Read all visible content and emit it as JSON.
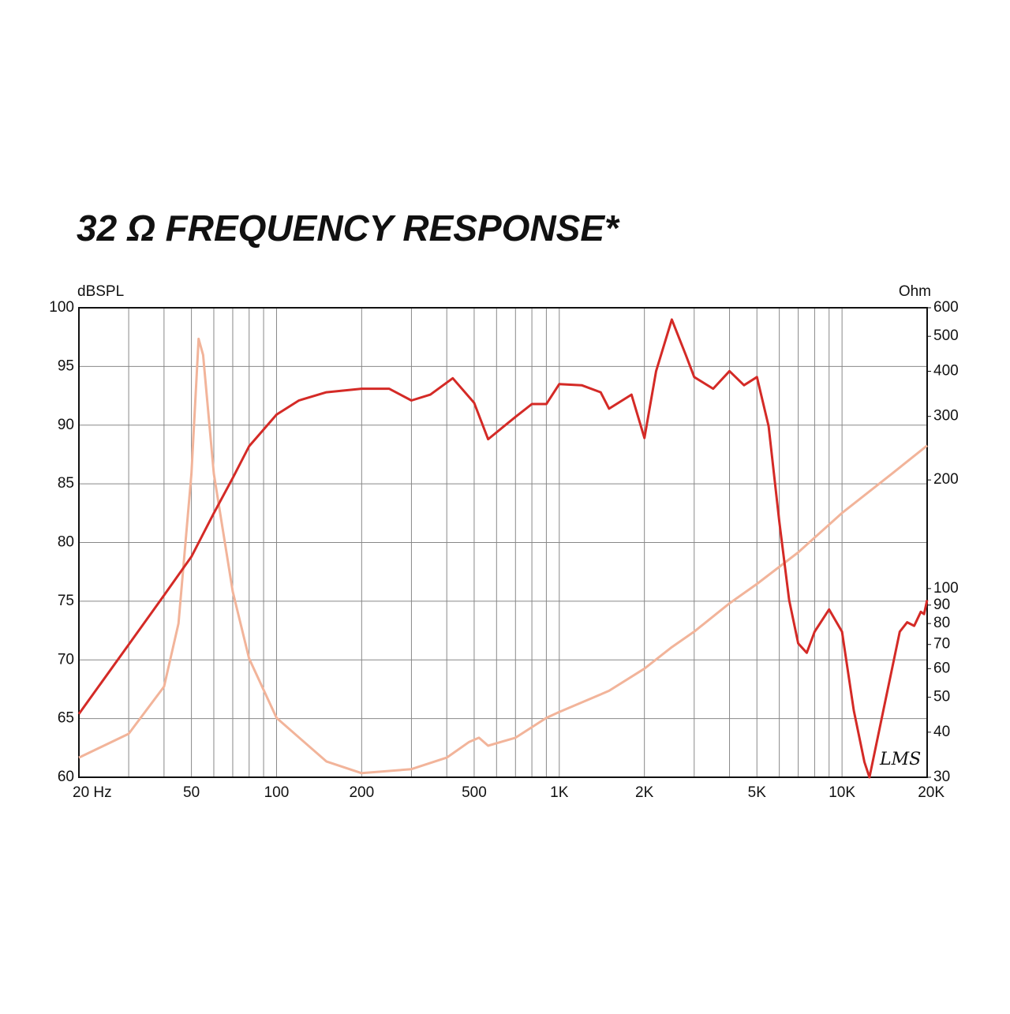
{
  "chart_data": {
    "type": "line",
    "title": "32 Ω FREQUENCY RESPONSE*",
    "ylabel": "dBSPL",
    "y2label": "Ohm",
    "annotation": "LMS",
    "xscale": "log",
    "y2scale": "log",
    "grid": true,
    "xlim": [
      20,
      20000
    ],
    "xticks": [
      {
        "value": 20,
        "label": "20  Hz"
      },
      50,
      100,
      200,
      500,
      {
        "value": 1000,
        "label": "1K"
      },
      {
        "value": 2000,
        "label": "2K"
      },
      {
        "value": 5000,
        "label": "5K"
      },
      {
        "value": 10000,
        "label": "10K"
      },
      {
        "value": 20000,
        "label": "20K"
      }
    ],
    "ylim": [
      60,
      100
    ],
    "yticks": [
      60,
      65,
      70,
      75,
      80,
      85,
      90,
      95,
      100
    ],
    "y2lim": [
      30,
      600
    ],
    "y2ticks": [
      30,
      40,
      50,
      60,
      70,
      80,
      90,
      100,
      200,
      300,
      400,
      500,
      600
    ],
    "series": [
      {
        "color": "#d42a26",
        "x": [
          20,
          30,
          40,
          50,
          60,
          70,
          80,
          100,
          120,
          150,
          200,
          250,
          300,
          350,
          420,
          500,
          560,
          700,
          800,
          900,
          1000,
          1200,
          1400,
          1500,
          1800,
          2000,
          2200,
          2500,
          2800,
          3000,
          3500,
          4000,
          4500,
          5000,
          5500,
          6000,
          6500,
          7000,
          7500,
          8000,
          9000,
          10000,
          11000,
          12000,
          12500,
          14000,
          16000,
          17000,
          18000,
          19000,
          19500,
          20000
        ],
        "values": [
          65.4,
          71.3,
          75.5,
          78.8,
          82.5,
          85.5,
          88.2,
          90.9,
          92.1,
          92.8,
          93.1,
          93.1,
          92.1,
          92.6,
          94.0,
          91.9,
          88.8,
          90.7,
          91.8,
          91.8,
          93.5,
          93.4,
          92.8,
          91.4,
          92.6,
          88.9,
          94.6,
          99.0,
          96.0,
          94.1,
          93.1,
          94.6,
          93.4,
          94.1,
          89.9,
          81.8,
          75.1,
          71.4,
          70.6,
          72.4,
          74.3,
          72.4,
          65.7,
          61.3,
          60,
          65.7,
          72.4,
          73.2,
          72.9,
          74.1,
          73.9,
          75.1
        ]
      },
      {
        "color": "#f2b49a",
        "axis": "y2",
        "x": [
          20,
          30,
          40,
          45,
          50,
          53,
          55,
          60,
          70,
          80,
          100,
          150,
          200,
          300,
          400,
          480,
          520,
          560,
          700,
          900,
          1000,
          1500,
          2000,
          2500,
          3000,
          4000,
          5000,
          7000,
          10000,
          15000,
          20000
        ],
        "values": [
          34.0,
          39.6,
          53.5,
          80,
          208,
          492,
          444,
          208,
          98,
          64,
          43.8,
          33.2,
          30.8,
          31.6,
          34,
          37.6,
          38.6,
          36.7,
          38.6,
          43.8,
          45.5,
          52.1,
          60,
          68.8,
          76,
          91,
          103,
          126,
          162,
          208,
          249
        ]
      }
    ]
  }
}
